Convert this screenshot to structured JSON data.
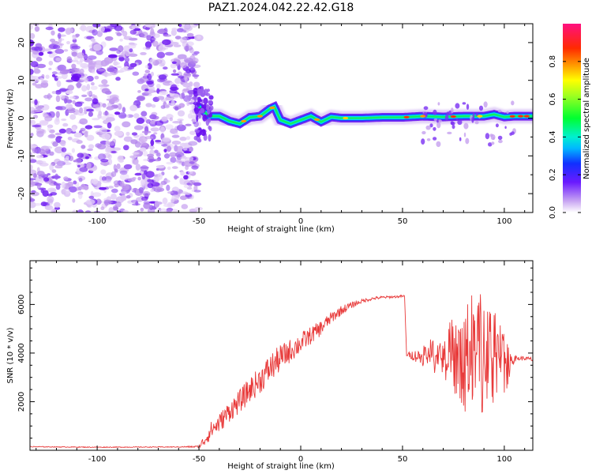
{
  "title": "PAZ1.2024.042.22.42.G18",
  "chart_data": [
    {
      "type": "heatmap",
      "panel": "spectrogram",
      "xlabel": "Height of straight line (km)",
      "ylabel": "Frequency (Hz)",
      "xlim": [
        -133,
        114
      ],
      "ylim": [
        -25,
        25
      ],
      "xticks": [
        -100,
        -50,
        0,
        50,
        100
      ],
      "xtick_labels": [
        "-100",
        "-50",
        "0",
        "50",
        "100"
      ],
      "yticks": [
        -20,
        -10,
        0,
        10,
        20
      ],
      "ytick_labels": [
        "-20",
        "-10",
        "0",
        "10",
        "20"
      ],
      "noise_region": [
        -133,
        -50
      ],
      "ridge_frequency_hz": {
        "x": [
          -50,
          -45,
          -40,
          -35,
          -30,
          -25,
          -20,
          -15,
          -13,
          -10,
          -5,
          0,
          5,
          10,
          15,
          20,
          30,
          40,
          50,
          60,
          70,
          80,
          90,
          95,
          100,
          105,
          114
        ],
        "y": [
          3,
          0.5,
          0.5,
          -0.8,
          -1.5,
          0.2,
          0.5,
          2.5,
          3,
          -0.5,
          -1.5,
          -0.5,
          0.5,
          -1,
          0.3,
          0,
          0,
          0.2,
          0.2,
          0.5,
          0.3,
          0.5,
          0.5,
          1,
          0.3,
          0.5,
          0.5
        ]
      },
      "colorbar": {
        "label": "Normalized spectral amplitude",
        "range": [
          0.0,
          1.0
        ],
        "ticks": [
          0.0,
          0.2,
          0.4,
          0.6,
          0.8
        ],
        "tick_labels": [
          "0.0",
          "0.2",
          "0.4",
          "0.6",
          "0.8"
        ],
        "colormap": "gist_ncar-like (white-purple-blue-cyan-green-yellow-orange-red-magenta)"
      }
    },
    {
      "type": "line",
      "panel": "snr",
      "xlabel": "Height of straight line (km)",
      "ylabel": "SNR (10 * v/v)",
      "xlim": [
        -133,
        114
      ],
      "ylim": [
        0,
        7800
      ],
      "xticks": [
        -100,
        -50,
        0,
        50,
        100
      ],
      "xtick_labels": [
        "-100",
        "-50",
        "0",
        "50",
        "100"
      ],
      "yticks": [
        2000,
        4000,
        6000
      ],
      "ytick_labels": [
        "2000",
        "4000",
        "6000"
      ],
      "color": "#e83a3a",
      "series": [
        {
          "x": [
            -133,
            -100,
            -60,
            -50,
            -47,
            -44,
            -40,
            -35,
            -30,
            -25,
            -20,
            -15,
            -10,
            -5,
            0,
            5,
            10,
            15,
            20,
            25,
            30,
            35,
            40,
            45,
            51,
            52,
            55,
            60,
            65,
            70,
            75,
            80,
            85,
            90,
            95,
            100,
            105,
            110,
            114
          ],
          "y": [
            150,
            130,
            140,
            160,
            500,
            900,
            1200,
            1700,
            2100,
            2600,
            3000,
            3500,
            3900,
            4200,
            4500,
            4800,
            5100,
            5500,
            5800,
            6000,
            6150,
            6250,
            6300,
            6320,
            6350,
            3950,
            3950,
            3900,
            3900,
            3850,
            3900,
            3800,
            3850,
            3900,
            3850,
            3800,
            3800,
            3800,
            3750
          ],
          "jitter": [
            20,
            20,
            20,
            60,
            350,
            450,
            500,
            550,
            600,
            650,
            700,
            750,
            700,
            600,
            550,
            450,
            400,
            300,
            250,
            160,
            100,
            80,
            70,
            60,
            60,
            80,
            260,
            450,
            650,
            900,
            1500,
            2200,
            2600,
            2300,
            1700,
            1500,
            150,
            100,
            120
          ]
        }
      ]
    }
  ]
}
